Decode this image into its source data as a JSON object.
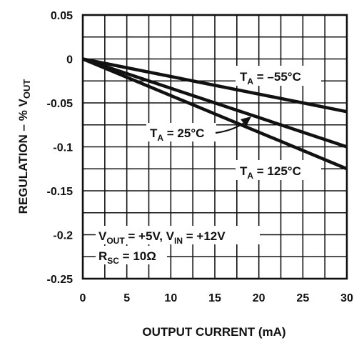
{
  "chart_data": {
    "type": "line",
    "xlabel": "OUTPUT CURRENT (mA)",
    "ylabel": {
      "main": "REGULATION – % V",
      "sub": "OUT"
    },
    "xlim": [
      0,
      30
    ],
    "ylim": [
      -0.25,
      0.05
    ],
    "x_ticks": [
      "0",
      "5",
      "10",
      "15",
      "20",
      "25",
      "30"
    ],
    "y_ticks": [
      "0.05",
      "0",
      "-0.05",
      "-0.1",
      "-0.15",
      "-0.2",
      "-0.25"
    ],
    "grid": true,
    "series": [
      {
        "name": {
          "main": "T",
          "sub": "A",
          "rest": " = –55°C"
        },
        "x": [
          0,
          30
        ],
        "y": [
          0,
          -0.06
        ]
      },
      {
        "name": {
          "main": "T",
          "sub": "A",
          "rest": " = 25°C"
        },
        "x": [
          0,
          30
        ],
        "y": [
          0,
          -0.1
        ]
      },
      {
        "name": {
          "main": "T",
          "sub": "A",
          "rest": " = 125°C"
        },
        "x": [
          0,
          30
        ],
        "y": [
          0,
          -0.125
        ]
      }
    ],
    "annotations": {
      "line1": {
        "a": "V",
        "a_sub": "OUT",
        "b": " = +5V, V",
        "b_sub": "IN",
        "c": " = +12V"
      },
      "line2": {
        "a": "R",
        "a_sub": "SC",
        "b": " = 10Ω"
      }
    }
  }
}
